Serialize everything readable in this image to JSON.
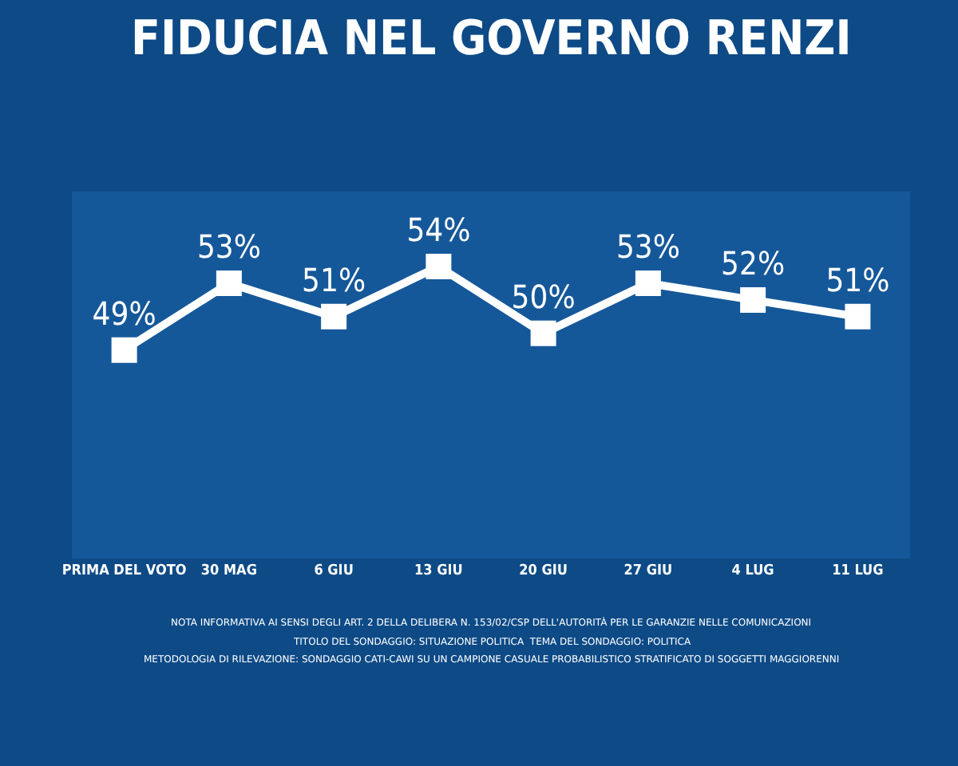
{
  "chart_data": {
    "type": "line",
    "title": "FIDUCIA NEL GOVERNO RENZI",
    "categories": [
      "PRIMA DEL VOTO",
      "30 MAG",
      "6 GIU",
      "13 GIU",
      "20 GIU",
      "27 GIU",
      "4 LUG",
      "11 LUG"
    ],
    "series": [
      {
        "color": "#ffffff",
        "values": [
          49,
          53,
          51,
          54,
          50,
          53,
          52,
          51
        ],
        "value_labels": [
          "49%",
          "53%",
          "51%",
          "54%",
          "50%",
          "53%",
          "52%",
          "51%"
        ]
      }
    ],
    "marker": "square",
    "line_style": "solid",
    "grid": false,
    "tick_labels": "x",
    "annotations": [
      "NOTA INFORMATIVA AI SENSI DEGLI ART. 2 DELLA DELIBERA N. 153/02/CSP DELL'AUTORITÀ PER LE GARANZIE NELLE COMUNICAZIONI",
      "TITOLO DEL SONDAGGIO: SITUAZIONE POLITICA  TEMA DEL SONDAGGIO: POLITICA",
      "METODOLOGIA DI RILEVAZIONE: SONDAGGIO CATI-CAWI SU UN CAMPIONE CASUALE PROBABILISTICO STRATIFICATO DI SOGGETTI MAGGIORENNI"
    ]
  }
}
